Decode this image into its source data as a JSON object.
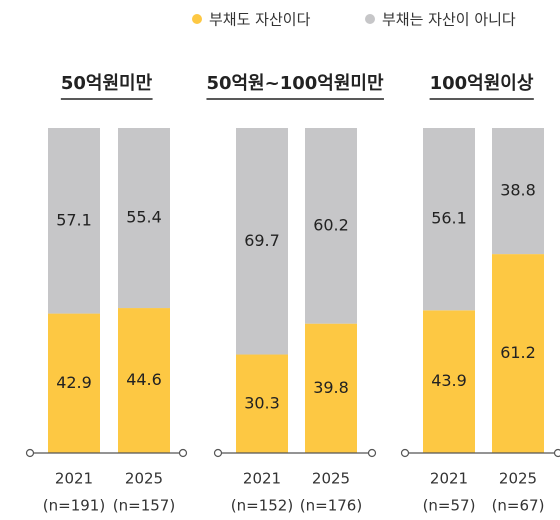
{
  "chart_data": {
    "type": "bar",
    "stacked": true,
    "ylim": [
      0,
      100
    ],
    "series": [
      {
        "name": "부채도 자산이다",
        "color": "#fdc843"
      },
      {
        "name": "부채는 자산이 아니다",
        "color": "#c6c6c8"
      }
    ],
    "panels": [
      {
        "title": "50억원미만",
        "categories": [
          "2021",
          "2025"
        ],
        "sample_sizes": [
          "(n=191)",
          "(n=157)"
        ],
        "values": [
          [
            42.9,
            44.6
          ],
          [
            57.1,
            55.4
          ]
        ]
      },
      {
        "title": "50억원~100억원미만",
        "categories": [
          "2021",
          "2025"
        ],
        "sample_sizes": [
          "(n=152)",
          "(n=176)"
        ],
        "values": [
          [
            30.3,
            39.8
          ],
          [
            69.7,
            60.2
          ]
        ]
      },
      {
        "title": "100억원이상",
        "categories": [
          "2021",
          "2025"
        ],
        "sample_sizes": [
          "(n=57)",
          "(n=67)"
        ],
        "values": [
          [
            43.9,
            61.2
          ],
          [
            56.1,
            38.8
          ]
        ]
      }
    ]
  }
}
